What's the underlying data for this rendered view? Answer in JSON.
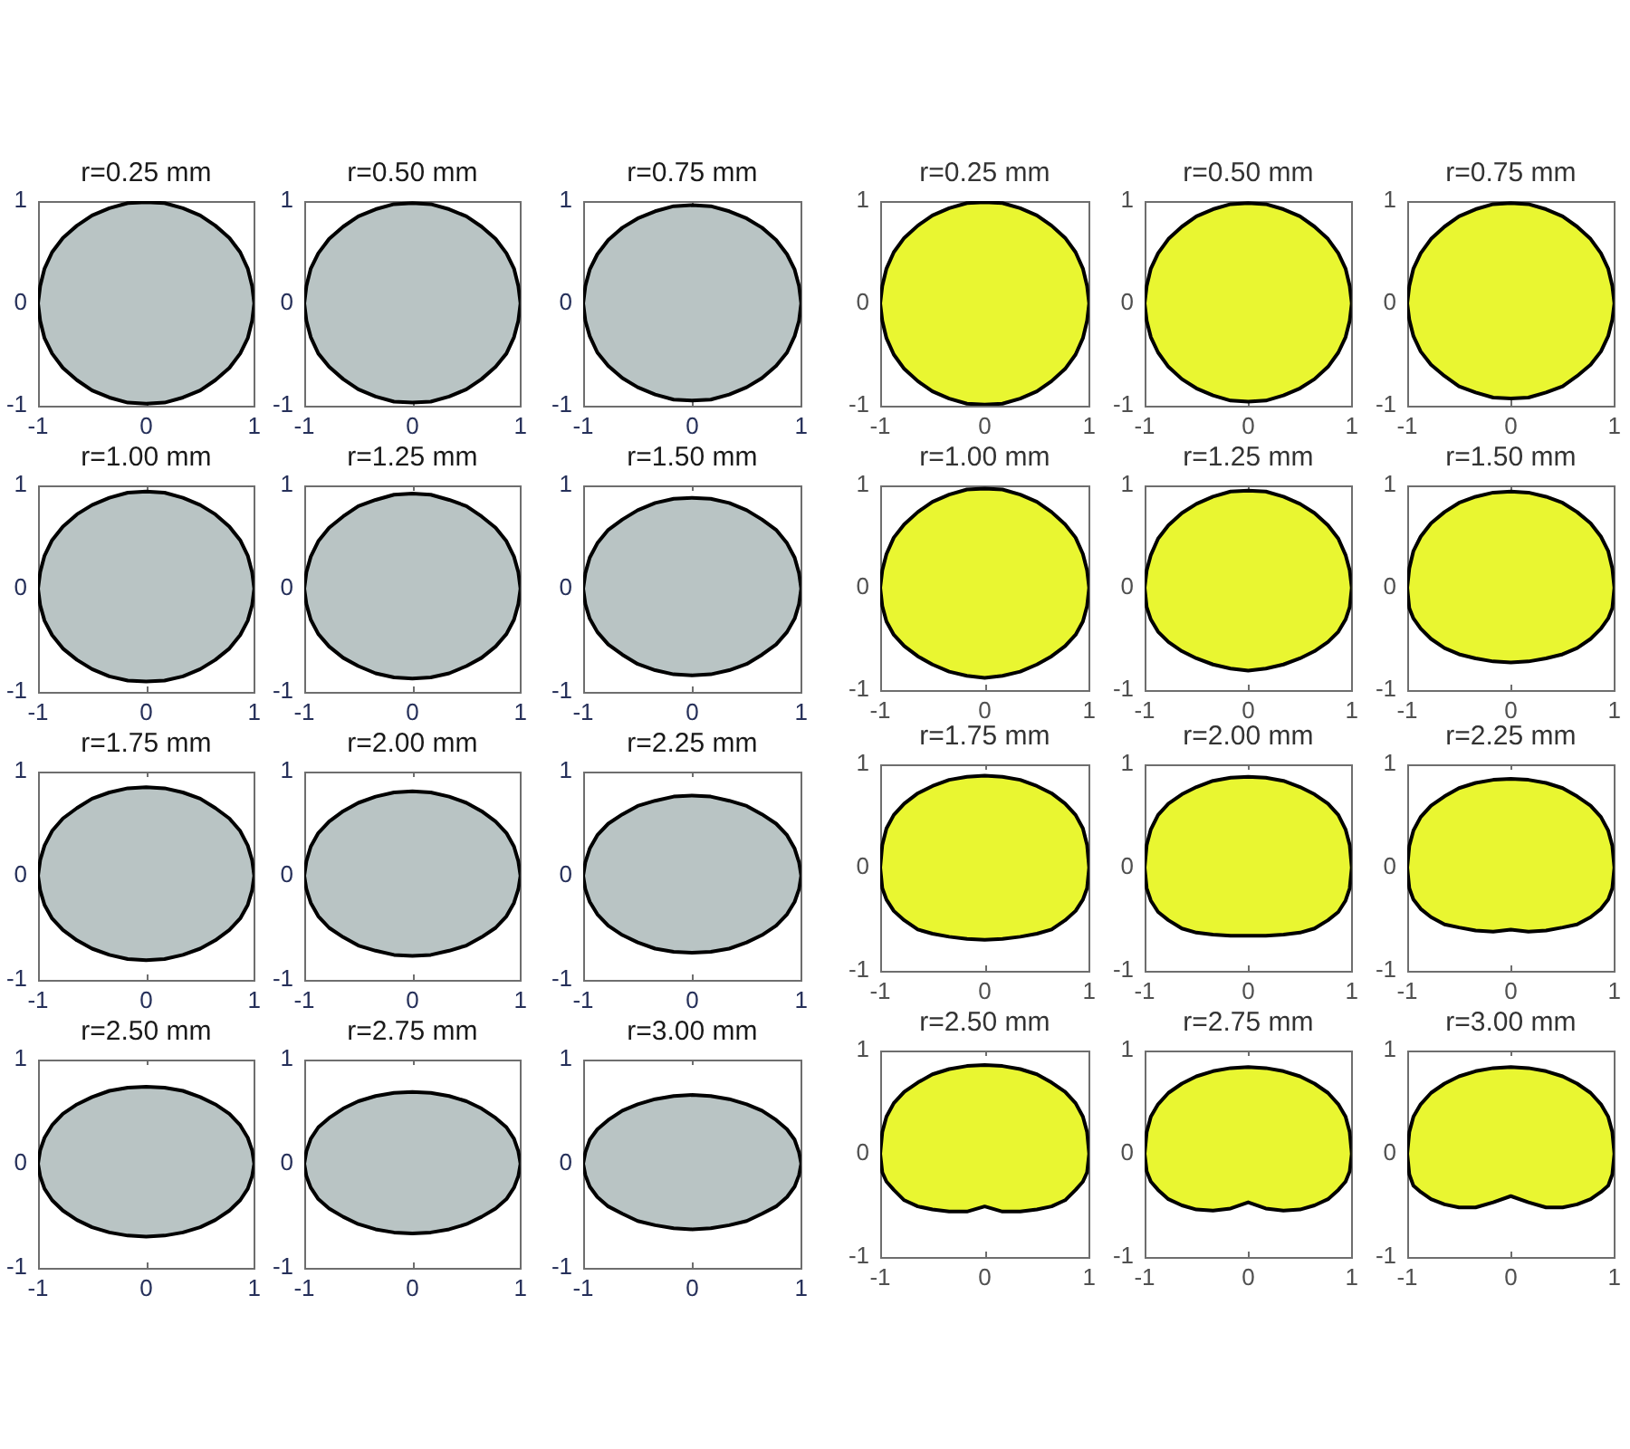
{
  "chart_data": [
    {
      "type": "area",
      "title": "r=0.25 mm",
      "x": [
        1,
        0.98,
        0.94,
        0.87,
        0.77,
        0.64,
        0.5,
        0.34,
        0.17,
        0,
        -0.17,
        -0.34,
        -0.5,
        -0.64,
        -0.77,
        -0.87,
        -0.94,
        -0.98,
        -1,
        -0.98,
        -0.94,
        -0.87,
        -0.77,
        -0.64,
        -0.5,
        -0.34,
        -0.17,
        0,
        0.17,
        0.34,
        0.5,
        0.64,
        0.77,
        0.87,
        0.94,
        0.98,
        1
      ],
      "series": [
        {
          "color": "#b9c4c4",
          "values": [
            0,
            0.17,
            0.34,
            0.5,
            0.64,
            0.76,
            0.86,
            0.93,
            0.98,
            0.99,
            0.98,
            0.93,
            0.86,
            0.76,
            0.64,
            0.5,
            0.34,
            0.17,
            0,
            -0.17,
            -0.34,
            -0.49,
            -0.63,
            -0.75,
            -0.85,
            -0.92,
            -0.97,
            -0.98,
            -0.97,
            -0.92,
            -0.85,
            -0.75,
            -0.63,
            -0.49,
            -0.34,
            -0.17,
            0
          ]
        }
      ],
      "xlim": [
        -1,
        1
      ],
      "ylim": [
        -1,
        1
      ],
      "xticks": [
        -1,
        0,
        1
      ],
      "yticks": [
        -1,
        0,
        1
      ]
    },
    {
      "type": "area",
      "title": "r=0.50 mm",
      "x": [
        1,
        0.98,
        0.94,
        0.87,
        0.77,
        0.64,
        0.5,
        0.34,
        0.17,
        0,
        -0.17,
        -0.34,
        -0.5,
        -0.64,
        -0.77,
        -0.87,
        -0.94,
        -0.98,
        -1,
        -0.98,
        -0.94,
        -0.87,
        -0.77,
        -0.64,
        -0.5,
        -0.34,
        -0.17,
        0,
        0.17,
        0.34,
        0.5,
        0.64,
        0.77,
        0.87,
        0.94,
        0.98,
        1
      ],
      "series": [
        {
          "color": "#b9c4c4",
          "values": [
            0,
            0.17,
            0.34,
            0.49,
            0.63,
            0.75,
            0.85,
            0.92,
            0.97,
            0.98,
            0.97,
            0.92,
            0.85,
            0.75,
            0.63,
            0.49,
            0.34,
            0.17,
            0,
            -0.17,
            -0.33,
            -0.49,
            -0.62,
            -0.74,
            -0.84,
            -0.91,
            -0.96,
            -0.97,
            -0.96,
            -0.91,
            -0.84,
            -0.74,
            -0.62,
            -0.49,
            -0.33,
            -0.17,
            0
          ]
        }
      ],
      "xlim": [
        -1,
        1
      ],
      "ylim": [
        -1,
        1
      ],
      "xticks": [
        -1,
        0,
        1
      ],
      "yticks": [
        -1,
        0,
        1
      ]
    },
    {
      "type": "area",
      "title": "r=0.75 mm",
      "x": [
        1,
        0.98,
        0.94,
        0.87,
        0.77,
        0.64,
        0.5,
        0.34,
        0.17,
        0,
        -0.17,
        -0.34,
        -0.5,
        -0.64,
        -0.77,
        -0.87,
        -0.94,
        -0.98,
        -1,
        -0.98,
        -0.94,
        -0.87,
        -0.77,
        -0.64,
        -0.5,
        -0.34,
        -0.17,
        0,
        0.17,
        0.34,
        0.5,
        0.64,
        0.77,
        0.87,
        0.94,
        0.98,
        1
      ],
      "series": [
        {
          "color": "#b9c4c4",
          "values": [
            0,
            0.17,
            0.33,
            0.48,
            0.62,
            0.74,
            0.83,
            0.9,
            0.95,
            0.96,
            0.95,
            0.9,
            0.83,
            0.74,
            0.62,
            0.48,
            0.33,
            0.17,
            0,
            -0.17,
            -0.32,
            -0.48,
            -0.61,
            -0.73,
            -0.82,
            -0.89,
            -0.94,
            -0.95,
            -0.94,
            -0.89,
            -0.82,
            -0.73,
            -0.61,
            -0.48,
            -0.32,
            -0.17,
            0
          ]
        }
      ],
      "xlim": [
        -1,
        1
      ],
      "ylim": [
        -1,
        1
      ],
      "xticks": [
        -1,
        0,
        1
      ],
      "yticks": [
        -1,
        0,
        1
      ]
    },
    {
      "type": "area",
      "title": "r=1.00 mm",
      "x": [
        1,
        0.98,
        0.94,
        0.87,
        0.77,
        0.64,
        0.5,
        0.34,
        0.17,
        0,
        -0.17,
        -0.34,
        -0.5,
        -0.64,
        -0.77,
        -0.87,
        -0.94,
        -0.98,
        -1,
        -0.98,
        -0.94,
        -0.87,
        -0.77,
        -0.64,
        -0.5,
        -0.34,
        -0.17,
        0,
        0.17,
        0.34,
        0.5,
        0.64,
        0.77,
        0.87,
        0.94,
        0.98,
        1
      ],
      "series": [
        {
          "color": "#b9c4c4",
          "values": [
            0,
            0.16,
            0.32,
            0.47,
            0.6,
            0.72,
            0.81,
            0.88,
            0.93,
            0.94,
            0.93,
            0.88,
            0.81,
            0.72,
            0.6,
            0.47,
            0.32,
            0.16,
            0,
            -0.16,
            -0.31,
            -0.45,
            -0.58,
            -0.69,
            -0.78,
            -0.85,
            -0.89,
            -0.9,
            -0.89,
            -0.85,
            -0.78,
            -0.69,
            -0.58,
            -0.45,
            -0.31,
            -0.16,
            0
          ]
        }
      ],
      "xlim": [
        -1,
        1
      ],
      "ylim": [
        -1,
        1
      ],
      "xticks": [
        -1,
        0,
        1
      ],
      "yticks": [
        -1,
        0,
        1
      ]
    },
    {
      "type": "area",
      "title": "r=1.25 mm",
      "x": [
        1,
        0.98,
        0.94,
        0.87,
        0.77,
        0.64,
        0.5,
        0.34,
        0.17,
        0,
        -0.17,
        -0.34,
        -0.5,
        -0.64,
        -0.77,
        -0.87,
        -0.94,
        -0.98,
        -1,
        -0.98,
        -0.94,
        -0.87,
        -0.77,
        -0.64,
        -0.5,
        -0.34,
        -0.17,
        0,
        0.17,
        0.34,
        0.5,
        0.64,
        0.77,
        0.87,
        0.94,
        0.98,
        1
      ],
      "series": [
        {
          "color": "#b9c4c4",
          "values": [
            0,
            0.16,
            0.31,
            0.46,
            0.59,
            0.7,
            0.8,
            0.86,
            0.91,
            0.92,
            0.91,
            0.86,
            0.8,
            0.7,
            0.59,
            0.46,
            0.31,
            0.16,
            0,
            -0.15,
            -0.3,
            -0.44,
            -0.56,
            -0.67,
            -0.75,
            -0.82,
            -0.86,
            -0.87,
            -0.86,
            -0.82,
            -0.75,
            -0.67,
            -0.56,
            -0.44,
            -0.3,
            -0.15,
            0
          ]
        }
      ],
      "xlim": [
        -1,
        1
      ],
      "ylim": [
        -1,
        1
      ],
      "xticks": [
        -1,
        0,
        1
      ],
      "yticks": [
        -1,
        0,
        1
      ]
    },
    {
      "type": "area",
      "title": "r=1.50 mm",
      "x": [
        1,
        0.98,
        0.94,
        0.87,
        0.77,
        0.64,
        0.5,
        0.34,
        0.17,
        0,
        -0.17,
        -0.34,
        -0.5,
        -0.64,
        -0.77,
        -0.87,
        -0.94,
        -0.98,
        -1,
        -0.98,
        -0.94,
        -0.87,
        -0.77,
        -0.64,
        -0.5,
        -0.34,
        -0.17,
        0,
        0.17,
        0.34,
        0.5,
        0.64,
        0.77,
        0.87,
        0.94,
        0.98,
        1
      ],
      "series": [
        {
          "color": "#b9c4c4",
          "values": [
            0,
            0.15,
            0.3,
            0.44,
            0.57,
            0.67,
            0.76,
            0.83,
            0.87,
            0.88,
            0.87,
            0.83,
            0.76,
            0.67,
            0.57,
            0.44,
            0.3,
            0.15,
            0,
            -0.15,
            -0.29,
            -0.42,
            -0.54,
            -0.64,
            -0.73,
            -0.79,
            -0.83,
            -0.84,
            -0.83,
            -0.79,
            -0.73,
            -0.64,
            -0.54,
            -0.42,
            -0.29,
            -0.15,
            0
          ]
        }
      ],
      "xlim": [
        -1,
        1
      ],
      "ylim": [
        -1,
        1
      ],
      "xticks": [
        -1,
        0,
        1
      ],
      "yticks": [
        -1,
        0,
        1
      ]
    },
    {
      "type": "area",
      "title": "r=1.75 mm",
      "x": [
        1,
        0.98,
        0.94,
        0.87,
        0.77,
        0.64,
        0.5,
        0.34,
        0.17,
        0,
        -0.17,
        -0.34,
        -0.5,
        -0.64,
        -0.77,
        -0.87,
        -0.94,
        -0.98,
        -1,
        -0.98,
        -0.94,
        -0.87,
        -0.77,
        -0.64,
        -0.5,
        -0.34,
        -0.17,
        0,
        0.17,
        0.34,
        0.5,
        0.64,
        0.77,
        0.87,
        0.94,
        0.98,
        1
      ],
      "series": [
        {
          "color": "#b9c4c4",
          "values": [
            0,
            0.15,
            0.29,
            0.43,
            0.55,
            0.65,
            0.74,
            0.8,
            0.84,
            0.85,
            0.84,
            0.8,
            0.74,
            0.65,
            0.55,
            0.43,
            0.29,
            0.15,
            0,
            -0.14,
            -0.28,
            -0.41,
            -0.52,
            -0.62,
            -0.7,
            -0.76,
            -0.8,
            -0.81,
            -0.8,
            -0.76,
            -0.7,
            -0.62,
            -0.52,
            -0.41,
            -0.28,
            -0.14,
            0
          ]
        }
      ],
      "xlim": [
        -1,
        1
      ],
      "ylim": [
        -1,
        1
      ],
      "xticks": [
        -1,
        0,
        1
      ],
      "yticks": [
        -1,
        0,
        1
      ]
    },
    {
      "type": "area",
      "title": "r=2.00 mm",
      "x": [
        1,
        0.98,
        0.94,
        0.87,
        0.77,
        0.64,
        0.5,
        0.34,
        0.17,
        0,
        -0.17,
        -0.34,
        -0.5,
        -0.64,
        -0.77,
        -0.87,
        -0.94,
        -0.98,
        -1,
        -0.98,
        -0.94,
        -0.87,
        -0.77,
        -0.64,
        -0.5,
        -0.34,
        -0.17,
        0,
        0.17,
        0.34,
        0.5,
        0.64,
        0.77,
        0.87,
        0.94,
        0.98,
        1
      ],
      "series": [
        {
          "color": "#b9c4c4",
          "values": [
            0,
            0.14,
            0.28,
            0.41,
            0.52,
            0.62,
            0.7,
            0.76,
            0.8,
            0.81,
            0.8,
            0.76,
            0.7,
            0.62,
            0.52,
            0.41,
            0.28,
            0.14,
            0,
            -0.13,
            -0.26,
            -0.39,
            -0.5,
            -0.59,
            -0.67,
            -0.72,
            -0.76,
            -0.77,
            -0.76,
            -0.72,
            -0.67,
            -0.59,
            -0.5,
            -0.39,
            -0.26,
            -0.13,
            0
          ]
        }
      ],
      "xlim": [
        -1,
        1
      ],
      "ylim": [
        -1,
        1
      ],
      "xticks": [
        -1,
        0,
        1
      ],
      "yticks": [
        -1,
        0,
        1
      ]
    },
    {
      "type": "area",
      "title": "r=2.25 mm",
      "x": [
        1,
        0.98,
        0.94,
        0.87,
        0.77,
        0.64,
        0.5,
        0.34,
        0.17,
        0,
        -0.17,
        -0.34,
        -0.5,
        -0.64,
        -0.77,
        -0.87,
        -0.94,
        -0.98,
        -1,
        -0.98,
        -0.94,
        -0.87,
        -0.77,
        -0.64,
        -0.5,
        -0.34,
        -0.17,
        0,
        0.17,
        0.34,
        0.5,
        0.64,
        0.77,
        0.87,
        0.94,
        0.98,
        1
      ],
      "series": [
        {
          "color": "#b9c4c4",
          "values": [
            0,
            0.13,
            0.26,
            0.39,
            0.5,
            0.59,
            0.67,
            0.72,
            0.76,
            0.77,
            0.76,
            0.72,
            0.67,
            0.59,
            0.5,
            0.39,
            0.26,
            0.13,
            0,
            -0.13,
            -0.25,
            -0.37,
            -0.48,
            -0.57,
            -0.64,
            -0.7,
            -0.73,
            -0.74,
            -0.73,
            -0.7,
            -0.64,
            -0.57,
            -0.48,
            -0.37,
            -0.25,
            -0.13,
            0
          ]
        }
      ],
      "xlim": [
        -1,
        1
      ],
      "ylim": [
        -1,
        1
      ],
      "xticks": [
        -1,
        0,
        1
      ],
      "yticks": [
        -1,
        0,
        1
      ]
    },
    {
      "type": "area",
      "title": "r=2.50 mm",
      "x": [
        1,
        0.98,
        0.94,
        0.87,
        0.77,
        0.64,
        0.5,
        0.34,
        0.17,
        0,
        -0.17,
        -0.34,
        -0.5,
        -0.64,
        -0.77,
        -0.87,
        -0.94,
        -0.98,
        -1,
        -0.98,
        -0.94,
        -0.87,
        -0.77,
        -0.64,
        -0.5,
        -0.34,
        -0.17,
        0,
        0.17,
        0.34,
        0.5,
        0.64,
        0.77,
        0.87,
        0.94,
        0.98,
        1
      ],
      "series": [
        {
          "color": "#b9c4c4",
          "values": [
            0,
            0.13,
            0.25,
            0.37,
            0.48,
            0.57,
            0.64,
            0.7,
            0.73,
            0.74,
            0.73,
            0.7,
            0.64,
            0.57,
            0.48,
            0.37,
            0.25,
            0.13,
            0,
            -0.12,
            -0.24,
            -0.35,
            -0.45,
            -0.54,
            -0.61,
            -0.66,
            -0.69,
            -0.7,
            -0.69,
            -0.66,
            -0.61,
            -0.54,
            -0.45,
            -0.35,
            -0.24,
            -0.12,
            0
          ]
        }
      ],
      "xlim": [
        -1,
        1
      ],
      "ylim": [
        -1,
        1
      ],
      "xticks": [
        -1,
        0,
        1
      ],
      "yticks": [
        -1,
        0,
        1
      ]
    },
    {
      "type": "area",
      "title": "r=2.75 mm",
      "x": [
        1,
        0.98,
        0.94,
        0.87,
        0.77,
        0.64,
        0.5,
        0.34,
        0.17,
        0,
        -0.17,
        -0.34,
        -0.5,
        -0.64,
        -0.77,
        -0.87,
        -0.94,
        -0.98,
        -1,
        -0.98,
        -0.94,
        -0.87,
        -0.77,
        -0.64,
        -0.5,
        -0.34,
        -0.17,
        0,
        0.17,
        0.34,
        0.5,
        0.64,
        0.77,
        0.87,
        0.94,
        0.98,
        1
      ],
      "series": [
        {
          "color": "#b9c4c4",
          "values": [
            0,
            0.12,
            0.24,
            0.35,
            0.44,
            0.53,
            0.6,
            0.65,
            0.68,
            0.69,
            0.68,
            0.65,
            0.6,
            0.53,
            0.44,
            0.35,
            0.24,
            0.12,
            0,
            -0.12,
            -0.23,
            -0.34,
            -0.43,
            -0.51,
            -0.58,
            -0.63,
            -0.66,
            -0.67,
            -0.66,
            -0.63,
            -0.58,
            -0.51,
            -0.43,
            -0.34,
            -0.23,
            -0.12,
            0
          ]
        }
      ],
      "xlim": [
        -1,
        1
      ],
      "ylim": [
        -1,
        1
      ],
      "xticks": [
        -1,
        0,
        1
      ],
      "yticks": [
        -1,
        0,
        1
      ]
    },
    {
      "type": "area",
      "title": "r=3.00 mm",
      "x": [
        1,
        0.98,
        0.94,
        0.87,
        0.77,
        0.64,
        0.5,
        0.34,
        0.17,
        0,
        -0.17,
        -0.34,
        -0.5,
        -0.64,
        -0.77,
        -0.87,
        -0.94,
        -0.98,
        -1,
        -0.98,
        -0.94,
        -0.87,
        -0.77,
        -0.64,
        -0.5,
        -0.34,
        -0.17,
        0,
        0.17,
        0.34,
        0.5,
        0.64,
        0.77,
        0.87,
        0.94,
        0.98,
        1
      ],
      "series": [
        {
          "color": "#b9c4c4",
          "values": [
            0,
            0.11,
            0.23,
            0.33,
            0.42,
            0.51,
            0.57,
            0.62,
            0.65,
            0.66,
            0.65,
            0.62,
            0.57,
            0.51,
            0.42,
            0.33,
            0.23,
            0.11,
            0,
            -0.11,
            -0.22,
            -0.32,
            -0.41,
            -0.48,
            -0.55,
            -0.59,
            -0.62,
            -0.63,
            -0.62,
            -0.59,
            -0.55,
            -0.48,
            -0.41,
            -0.32,
            -0.22,
            -0.11,
            0
          ]
        }
      ],
      "xlim": [
        -1,
        1
      ],
      "ylim": [
        -1,
        1
      ],
      "xticks": [
        -1,
        0,
        1
      ],
      "yticks": [
        -1,
        0,
        1
      ]
    },
    {
      "type": "area",
      "title": "r=0.25 mm",
      "x": [
        1,
        0.98,
        0.94,
        0.87,
        0.77,
        0.64,
        0.5,
        0.34,
        0.17,
        0,
        -0.17,
        -0.34,
        -0.5,
        -0.64,
        -0.77,
        -0.87,
        -0.94,
        -0.98,
        -1,
        -0.98,
        -0.94,
        -0.87,
        -0.77,
        -0.64,
        -0.5,
        -0.34,
        -0.17,
        0,
        0.17,
        0.34,
        0.5,
        0.64,
        0.77,
        0.87,
        0.94,
        0.98,
        1
      ],
      "series": [
        {
          "color": "#e9f631",
          "values": [
            0,
            0.17,
            0.34,
            0.5,
            0.64,
            0.76,
            0.86,
            0.93,
            0.98,
            0.99,
            0.98,
            0.93,
            0.86,
            0.76,
            0.64,
            0.5,
            0.34,
            0.17,
            0,
            -0.17,
            -0.34,
            -0.5,
            -0.64,
            -0.76,
            -0.86,
            -0.93,
            -0.98,
            -0.99,
            -0.98,
            -0.93,
            -0.86,
            -0.76,
            -0.64,
            -0.5,
            -0.34,
            -0.17,
            0
          ]
        }
      ],
      "xlim": [
        -1,
        1
      ],
      "ylim": [
        -1,
        1
      ],
      "xticks": [
        -1,
        0,
        1
      ],
      "yticks": [
        -1,
        0,
        1
      ]
    },
    {
      "type": "area",
      "title": "r=0.50 mm",
      "x": [
        1,
        0.98,
        0.94,
        0.87,
        0.77,
        0.64,
        0.5,
        0.34,
        0.17,
        0,
        -0.17,
        -0.34,
        -0.5,
        -0.64,
        -0.77,
        -0.87,
        -0.94,
        -0.98,
        -1,
        -0.98,
        -0.94,
        -0.87,
        -0.77,
        -0.64,
        -0.5,
        -0.34,
        -0.17,
        0,
        0.17,
        0.34,
        0.5,
        0.64,
        0.77,
        0.87,
        0.94,
        0.98,
        1
      ],
      "series": [
        {
          "color": "#e9f631",
          "values": [
            0,
            0.17,
            0.34,
            0.49,
            0.63,
            0.75,
            0.85,
            0.92,
            0.97,
            0.98,
            0.97,
            0.92,
            0.85,
            0.75,
            0.63,
            0.49,
            0.34,
            0.17,
            0,
            -0.17,
            -0.33,
            -0.48,
            -0.62,
            -0.74,
            -0.83,
            -0.9,
            -0.95,
            -0.96,
            -0.95,
            -0.9,
            -0.83,
            -0.74,
            -0.62,
            -0.48,
            -0.33,
            -0.17,
            0
          ]
        }
      ],
      "xlim": [
        -1,
        1
      ],
      "ylim": [
        -1,
        1
      ],
      "xticks": [
        -1,
        0,
        1
      ],
      "yticks": [
        -1,
        0,
        1
      ]
    },
    {
      "type": "area",
      "title": "r=0.75 mm",
      "x": [
        1,
        0.98,
        0.94,
        0.87,
        0.77,
        0.64,
        0.5,
        0.34,
        0.17,
        0,
        -0.17,
        -0.34,
        -0.5,
        -0.64,
        -0.77,
        -0.87,
        -0.94,
        -0.98,
        -1,
        -0.98,
        -0.94,
        -0.87,
        -0.77,
        -0.64,
        -0.5,
        -0.34,
        -0.17,
        0,
        0.17,
        0.34,
        0.5,
        0.64,
        0.77,
        0.87,
        0.94,
        0.98,
        1
      ],
      "series": [
        {
          "color": "#e9f631",
          "values": [
            0,
            0.17,
            0.34,
            0.49,
            0.63,
            0.75,
            0.85,
            0.92,
            0.97,
            0.98,
            0.97,
            0.92,
            0.85,
            0.75,
            0.63,
            0.49,
            0.34,
            0.17,
            0,
            -0.16,
            -0.32,
            -0.47,
            -0.6,
            -0.71,
            -0.81,
            -0.87,
            -0.92,
            -0.93,
            -0.92,
            -0.87,
            -0.81,
            -0.71,
            -0.6,
            -0.47,
            -0.32,
            -0.16,
            0
          ]
        }
      ],
      "xlim": [
        -1,
        1
      ],
      "ylim": [
        -1,
        1
      ],
      "xticks": [
        -1,
        0,
        1
      ],
      "yticks": [
        -1,
        0,
        1
      ]
    },
    {
      "type": "area",
      "title": "r=1.00 mm",
      "x": [
        1,
        0.98,
        0.94,
        0.87,
        0.77,
        0.64,
        0.5,
        0.34,
        0.17,
        0,
        -0.17,
        -0.34,
        -0.5,
        -0.64,
        -0.77,
        -0.87,
        -0.94,
        -0.98,
        -1,
        -0.98,
        -0.94,
        -0.87,
        -0.77,
        -0.64,
        -0.5,
        -0.34,
        -0.17,
        0,
        0.17,
        0.34,
        0.5,
        0.64,
        0.77,
        0.87,
        0.94,
        0.98,
        1
      ],
      "series": [
        {
          "color": "#e9f631",
          "values": [
            0,
            0.17,
            0.33,
            0.49,
            0.62,
            0.74,
            0.84,
            0.91,
            0.96,
            0.97,
            0.96,
            0.91,
            0.84,
            0.74,
            0.62,
            0.49,
            0.33,
            0.17,
            0,
            -0.18,
            -0.33,
            -0.46,
            -0.57,
            -0.67,
            -0.75,
            -0.82,
            -0.86,
            -0.88,
            -0.86,
            -0.82,
            -0.75,
            -0.67,
            -0.57,
            -0.46,
            -0.33,
            -0.18,
            0
          ]
        }
      ],
      "xlim": [
        -1,
        1
      ],
      "ylim": [
        -1,
        1
      ],
      "xticks": [
        -1,
        0,
        1
      ],
      "yticks": [
        -1,
        0,
        1
      ]
    },
    {
      "type": "area",
      "title": "r=1.25 mm",
      "x": [
        1,
        0.98,
        0.94,
        0.87,
        0.77,
        0.64,
        0.5,
        0.34,
        0.17,
        0,
        -0.17,
        -0.34,
        -0.5,
        -0.64,
        -0.77,
        -0.87,
        -0.94,
        -0.98,
        -1,
        -0.98,
        -0.94,
        -0.87,
        -0.77,
        -0.64,
        -0.5,
        -0.34,
        -0.17,
        0,
        0.17,
        0.34,
        0.5,
        0.64,
        0.77,
        0.87,
        0.94,
        0.98,
        1
      ],
      "series": [
        {
          "color": "#e9f631",
          "values": [
            0,
            0.17,
            0.32,
            0.48,
            0.61,
            0.73,
            0.82,
            0.89,
            0.94,
            0.95,
            0.94,
            0.89,
            0.82,
            0.73,
            0.61,
            0.48,
            0.32,
            0.17,
            0,
            -0.19,
            -0.31,
            -0.43,
            -0.53,
            -0.62,
            -0.69,
            -0.75,
            -0.79,
            -0.81,
            -0.79,
            -0.75,
            -0.69,
            -0.62,
            -0.53,
            -0.43,
            -0.31,
            -0.19,
            0
          ]
        }
      ],
      "xlim": [
        -1,
        1
      ],
      "ylim": [
        -1,
        1
      ],
      "xticks": [
        -1,
        0,
        1
      ],
      "yticks": [
        -1,
        0,
        1
      ]
    },
    {
      "type": "area",
      "title": "r=1.50 mm",
      "x": [
        1,
        0.98,
        0.94,
        0.87,
        0.77,
        0.64,
        0.5,
        0.34,
        0.17,
        0,
        -0.17,
        -0.34,
        -0.5,
        -0.64,
        -0.77,
        -0.87,
        -0.94,
        -0.98,
        -1,
        -0.98,
        -0.94,
        -0.87,
        -0.77,
        -0.64,
        -0.5,
        -0.34,
        -0.17,
        0,
        0.17,
        0.34,
        0.5,
        0.64,
        0.77,
        0.87,
        0.94,
        0.98,
        1
      ],
      "series": [
        {
          "color": "#e9f631",
          "values": [
            0,
            0.19,
            0.36,
            0.5,
            0.63,
            0.74,
            0.83,
            0.89,
            0.93,
            0.94,
            0.93,
            0.89,
            0.83,
            0.74,
            0.63,
            0.5,
            0.36,
            0.19,
            0,
            -0.2,
            -0.3,
            -0.4,
            -0.5,
            -0.59,
            -0.65,
            -0.69,
            -0.72,
            -0.73,
            -0.72,
            -0.69,
            -0.65,
            -0.59,
            -0.5,
            -0.4,
            -0.3,
            -0.2,
            0
          ]
        }
      ],
      "xlim": [
        -1,
        1
      ],
      "ylim": [
        -1,
        1
      ],
      "xticks": [
        -1,
        0,
        1
      ],
      "yticks": [
        -1,
        0,
        1
      ]
    },
    {
      "type": "area",
      "title": "r=1.75 mm",
      "x": [
        1,
        0.98,
        0.94,
        0.87,
        0.77,
        0.64,
        0.5,
        0.34,
        0.17,
        0,
        -0.17,
        -0.34,
        -0.5,
        -0.64,
        -0.77,
        -0.87,
        -0.94,
        -0.98,
        -1,
        -0.98,
        -0.94,
        -0.87,
        -0.77,
        -0.64,
        -0.5,
        -0.34,
        -0.17,
        0,
        0.17,
        0.34,
        0.5,
        0.64,
        0.77,
        0.87,
        0.94,
        0.98,
        1
      ],
      "series": [
        {
          "color": "#e9f631",
          "values": [
            0,
            0.22,
            0.38,
            0.51,
            0.62,
            0.72,
            0.79,
            0.85,
            0.88,
            0.89,
            0.88,
            0.85,
            0.79,
            0.72,
            0.62,
            0.51,
            0.38,
            0.22,
            0,
            -0.2,
            -0.31,
            -0.42,
            -0.51,
            -0.6,
            -0.64,
            -0.67,
            -0.69,
            -0.7,
            -0.69,
            -0.67,
            -0.64,
            -0.6,
            -0.51,
            -0.42,
            -0.31,
            -0.2,
            0
          ]
        }
      ],
      "xlim": [
        -1,
        1
      ],
      "ylim": [
        -1,
        1
      ],
      "xticks": [
        -1,
        0,
        1
      ],
      "yticks": [
        -1,
        0,
        1
      ]
    },
    {
      "type": "area",
      "title": "r=2.00 mm",
      "x": [
        1,
        0.98,
        0.94,
        0.87,
        0.77,
        0.64,
        0.5,
        0.34,
        0.17,
        0,
        -0.17,
        -0.34,
        -0.5,
        -0.64,
        -0.77,
        -0.87,
        -0.94,
        -0.98,
        -1,
        -0.98,
        -0.94,
        -0.87,
        -0.77,
        -0.64,
        -0.5,
        -0.34,
        -0.17,
        0,
        0.17,
        0.34,
        0.5,
        0.64,
        0.77,
        0.87,
        0.94,
        0.98,
        1
      ],
      "series": [
        {
          "color": "#e9f631",
          "values": [
            0,
            0.22,
            0.37,
            0.51,
            0.62,
            0.71,
            0.78,
            0.84,
            0.87,
            0.88,
            0.87,
            0.84,
            0.78,
            0.71,
            0.62,
            0.51,
            0.37,
            0.22,
            0,
            -0.2,
            -0.32,
            -0.43,
            -0.51,
            -0.59,
            -0.63,
            -0.65,
            -0.66,
            -0.66,
            -0.66,
            -0.65,
            -0.63,
            -0.59,
            -0.51,
            -0.43,
            -0.32,
            -0.2,
            0
          ]
        }
      ],
      "xlim": [
        -1,
        1
      ],
      "ylim": [
        -1,
        1
      ],
      "xticks": [
        -1,
        0,
        1
      ],
      "yticks": [
        -1,
        0,
        1
      ]
    },
    {
      "type": "area",
      "title": "r=2.25 mm",
      "x": [
        1,
        0.98,
        0.94,
        0.87,
        0.77,
        0.64,
        0.5,
        0.34,
        0.17,
        0,
        -0.17,
        -0.34,
        -0.5,
        -0.64,
        -0.77,
        -0.87,
        -0.94,
        -0.98,
        -1,
        -0.98,
        -0.94,
        -0.87,
        -0.77,
        -0.64,
        -0.5,
        -0.34,
        -0.17,
        0,
        0.17,
        0.34,
        0.5,
        0.64,
        0.77,
        0.87,
        0.94,
        0.98,
        1
      ],
      "series": [
        {
          "color": "#e9f631",
          "values": [
            0,
            0.21,
            0.36,
            0.49,
            0.6,
            0.69,
            0.77,
            0.82,
            0.85,
            0.86,
            0.85,
            0.82,
            0.77,
            0.69,
            0.6,
            0.49,
            0.36,
            0.21,
            0,
            -0.2,
            -0.31,
            -0.4,
            -0.48,
            -0.55,
            -0.58,
            -0.61,
            -0.62,
            -0.6,
            -0.62,
            -0.61,
            -0.58,
            -0.55,
            -0.48,
            -0.4,
            -0.31,
            -0.2,
            0
          ]
        }
      ],
      "xlim": [
        -1,
        1
      ],
      "ylim": [
        -1,
        1
      ],
      "xticks": [
        -1,
        0,
        1
      ],
      "yticks": [
        -1,
        0,
        1
      ]
    },
    {
      "type": "area",
      "title": "r=2.50 mm",
      "x": [
        1,
        0.98,
        0.94,
        0.87,
        0.77,
        0.64,
        0.5,
        0.34,
        0.17,
        0,
        -0.17,
        -0.34,
        -0.5,
        -0.64,
        -0.77,
        -0.87,
        -0.94,
        -0.98,
        -1,
        -0.98,
        -0.94,
        -0.87,
        -0.77,
        -0.64,
        -0.5,
        -0.34,
        -0.17,
        0,
        0.17,
        0.34,
        0.5,
        0.64,
        0.77,
        0.87,
        0.94,
        0.98,
        1
      ],
      "series": [
        {
          "color": "#e9f631",
          "values": [
            0,
            0.21,
            0.36,
            0.49,
            0.6,
            0.69,
            0.77,
            0.82,
            0.85,
            0.86,
            0.85,
            0.82,
            0.77,
            0.69,
            0.6,
            0.49,
            0.36,
            0.21,
            0,
            -0.18,
            -0.27,
            -0.35,
            -0.45,
            -0.51,
            -0.54,
            -0.56,
            -0.56,
            -0.51,
            -0.56,
            -0.56,
            -0.54,
            -0.51,
            -0.45,
            -0.35,
            -0.27,
            -0.18,
            0
          ]
        }
      ],
      "xlim": [
        -1,
        1
      ],
      "ylim": [
        -1,
        1
      ],
      "xticks": [
        -1,
        0,
        1
      ],
      "yticks": [
        -1,
        0,
        1
      ]
    },
    {
      "type": "area",
      "title": "r=2.75 mm",
      "x": [
        1,
        0.98,
        0.94,
        0.87,
        0.77,
        0.64,
        0.5,
        0.34,
        0.17,
        0,
        -0.17,
        -0.34,
        -0.5,
        -0.64,
        -0.77,
        -0.87,
        -0.94,
        -0.98,
        -1,
        -0.98,
        -0.94,
        -0.87,
        -0.77,
        -0.64,
        -0.5,
        -0.34,
        -0.17,
        0,
        0.17,
        0.34,
        0.5,
        0.64,
        0.77,
        0.87,
        0.94,
        0.98,
        1
      ],
      "series": [
        {
          "color": "#e9f631",
          "values": [
            0,
            0.21,
            0.36,
            0.48,
            0.59,
            0.68,
            0.75,
            0.8,
            0.83,
            0.84,
            0.83,
            0.8,
            0.75,
            0.68,
            0.59,
            0.48,
            0.36,
            0.21,
            0,
            -0.17,
            -0.27,
            -0.35,
            -0.44,
            -0.5,
            -0.54,
            -0.55,
            -0.53,
            -0.47,
            -0.53,
            -0.55,
            -0.54,
            -0.5,
            -0.44,
            -0.35,
            -0.27,
            -0.17,
            0
          ]
        }
      ],
      "xlim": [
        -1,
        1
      ],
      "ylim": [
        -1,
        1
      ],
      "xticks": [
        -1,
        0,
        1
      ],
      "yticks": [
        -1,
        0,
        1
      ]
    },
    {
      "type": "area",
      "title": "r=3.00 mm",
      "x": [
        1,
        0.98,
        0.94,
        0.87,
        0.77,
        0.64,
        0.5,
        0.34,
        0.17,
        0,
        -0.17,
        -0.34,
        -0.5,
        -0.64,
        -0.77,
        -0.87,
        -0.94,
        -0.98,
        -1,
        -0.98,
        -0.94,
        -0.87,
        -0.77,
        -0.64,
        -0.5,
        -0.34,
        -0.17,
        0,
        0.17,
        0.34,
        0.5,
        0.64,
        0.77,
        0.87,
        0.94,
        0.98,
        1
      ],
      "series": [
        {
          "color": "#e9f631",
          "values": [
            0,
            0.21,
            0.36,
            0.48,
            0.59,
            0.68,
            0.75,
            0.8,
            0.83,
            0.84,
            0.83,
            0.8,
            0.75,
            0.68,
            0.59,
            0.48,
            0.36,
            0.21,
            0,
            -0.2,
            -0.31,
            -0.37,
            -0.44,
            -0.49,
            -0.52,
            -0.52,
            -0.47,
            -0.41,
            -0.47,
            -0.52,
            -0.52,
            -0.49,
            -0.44,
            -0.37,
            -0.31,
            -0.2,
            0
          ]
        }
      ],
      "xlim": [
        -1,
        1
      ],
      "ylim": [
        -1,
        1
      ],
      "xticks": [
        -1,
        0,
        1
      ],
      "yticks": [
        -1,
        0,
        1
      ]
    }
  ]
}
